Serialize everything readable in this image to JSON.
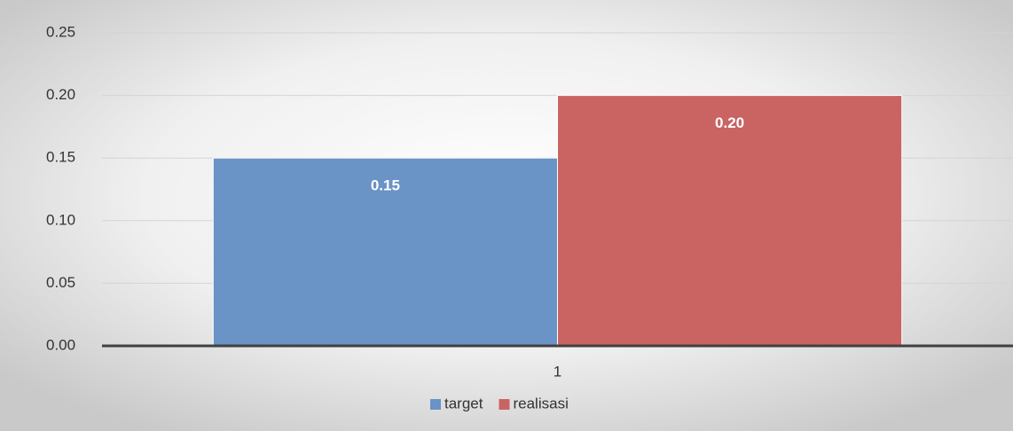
{
  "chart_data": {
    "type": "bar",
    "categories": [
      "1"
    ],
    "series": [
      {
        "name": "target",
        "color": "#6a93c6",
        "values": [
          0.15
        ],
        "value_labels": [
          "0.15"
        ]
      },
      {
        "name": "realisasi",
        "color": "#c96463",
        "values": [
          0.2
        ],
        "value_labels": [
          "0.20"
        ]
      }
    ],
    "ylim": [
      0,
      0.25
    ],
    "yticks": [
      {
        "value": 0,
        "label": "0.00"
      },
      0.05,
      {
        "value": 0.1,
        "label": "0.10"
      },
      0.15,
      {
        "value": 0.2,
        "label": "0.20"
      },
      0.25
    ],
    "grid": true,
    "legend": "bottom"
  }
}
